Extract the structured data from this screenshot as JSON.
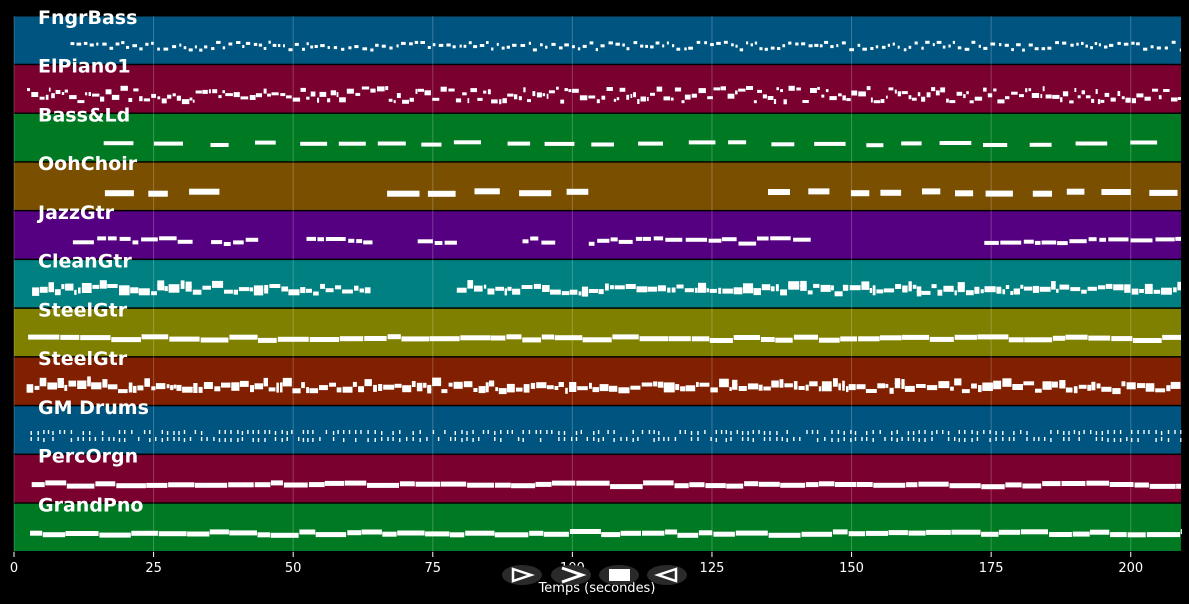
{
  "chart_data": {
    "type": "piano-roll",
    "xlabel": "Temps (secondes)",
    "xlim": [
      0,
      209
    ],
    "x_ticks": [
      0,
      25,
      50,
      75,
      100,
      125,
      150,
      175,
      200
    ],
    "grid": true,
    "tracks": [
      {
        "name": "FngrBass",
        "color": "#005580",
        "pattern": "bass",
        "active": [
          [
            10,
            209
          ]
        ]
      },
      {
        "name": "ElPiano1",
        "color": "#7a0030",
        "pattern": "piano",
        "active": [
          [
            2,
            209
          ]
        ]
      },
      {
        "name": "Bass&Ld",
        "color": "#007a22",
        "pattern": "sparse",
        "active": [
          [
            11,
            209
          ]
        ]
      },
      {
        "name": "OohChoir",
        "color": "#7a5000",
        "pattern": "chords",
        "active": [
          [
            11,
            42
          ],
          [
            63,
            103
          ],
          [
            129,
            209
          ]
        ]
      },
      {
        "name": "JazzGtr",
        "color": "#550080",
        "pattern": "phrase",
        "active": [
          [
            10,
            32
          ],
          [
            34,
            46
          ],
          [
            50,
            65
          ],
          [
            70,
            80
          ],
          [
            91,
            97
          ],
          [
            101,
            113
          ],
          [
            114,
            130
          ],
          [
            132,
            144
          ],
          [
            171,
            209
          ]
        ]
      },
      {
        "name": "CleanGtr",
        "color": "#008080",
        "pattern": "dense",
        "active": [
          [
            2,
            64
          ],
          [
            79,
            209
          ]
        ]
      },
      {
        "name": "SteelGtr",
        "color": "#808000",
        "pattern": "steady",
        "active": [
          [
            2,
            209
          ]
        ]
      },
      {
        "name": "SteelGtr",
        "color": "#802000",
        "pattern": "dense",
        "active": [
          [
            2,
            209
          ]
        ]
      },
      {
        "name": "GM Drums",
        "color": "#005580",
        "pattern": "drums",
        "active": [
          [
            2,
            209
          ]
        ]
      },
      {
        "name": "PercOrgn",
        "color": "#7a0030",
        "pattern": "steady",
        "active": [
          [
            2,
            209
          ]
        ]
      },
      {
        "name": "GrandPno",
        "color": "#007a22",
        "pattern": "steady",
        "active": [
          [
            2,
            209
          ]
        ]
      }
    ]
  },
  "controls": [
    {
      "name": "play-button",
      "icon": "play-icon"
    },
    {
      "name": "fast-forward-button",
      "icon": "fast-forward-icon"
    },
    {
      "name": "stop-button",
      "icon": "stop-icon"
    },
    {
      "name": "rewind-button",
      "icon": "rewind-icon"
    }
  ]
}
